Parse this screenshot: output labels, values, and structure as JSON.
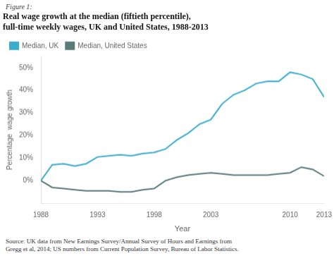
{
  "chart_data": {
    "type": "line",
    "title": [
      "Real wage growth at the median (fiftieth percentile),",
      "full-time weekly wages, UK and United States, 1988-2013"
    ],
    "x_label": "Year",
    "y_label": "Percentage  wage growth",
    "annotations": [
      "Figure 1:",
      "Source: UK data from New Earnings Survey/Annual Survey of Hours and Earnings from",
      "Gregg et al, 2014; US numbers from Current Population Survey, Bureau of Labor Statistics."
    ],
    "x": [
      1988,
      1989,
      1990,
      1991,
      1992,
      1993,
      1994,
      1995,
      1996,
      1997,
      1998,
      1999,
      2000,
      2001,
      2002,
      2003,
      2004,
      2005,
      2006,
      2007,
      2008,
      2009,
      2010,
      2011,
      2012,
      2013
    ],
    "series": [
      {
        "name": "Median, UK",
        "color": "#3aacce",
        "values": [
          0,
          7,
          7.5,
          6.5,
          7.5,
          10.5,
          11,
          11.5,
          11,
          12,
          12.5,
          14,
          18,
          21,
          25,
          27,
          34,
          38,
          40,
          43,
          44,
          44,
          48,
          47,
          45,
          37
        ]
      },
      {
        "name": "Median, United States",
        "color": "#5a7a7a",
        "values": [
          0,
          -3,
          -3.5,
          -4,
          -4.5,
          -4.5,
          -4.5,
          -5,
          -5,
          -4,
          -3.5,
          0,
          1.5,
          2.5,
          3,
          3.5,
          3,
          2.5,
          2.5,
          2.5,
          2.5,
          3,
          3.5,
          6,
          5,
          2
        ]
      }
    ],
    "xlim": [
      1988,
      2013
    ],
    "xticks": [
      1988,
      1993,
      1998,
      2003,
      2010,
      2013
    ],
    "ylim": [
      -10,
      55
    ],
    "yticks": [
      {
        "value": 0,
        "label": "0%"
      },
      {
        "value": 10,
        "label": "10%"
      },
      {
        "value": 20,
        "label": "20%"
      },
      {
        "value": 30,
        "label": "30%"
      },
      {
        "value": 40,
        "label": "40%"
      },
      {
        "value": 50,
        "label": "50%"
      }
    ],
    "grid": false,
    "legend": "upper left"
  }
}
